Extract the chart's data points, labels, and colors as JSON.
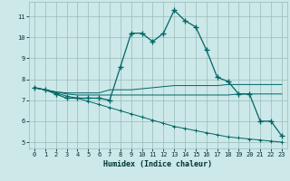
{
  "xlabel": "Humidex (Indice chaleur)",
  "bg_color": "#cce8e8",
  "grid_color": "#99bbbb",
  "line_color": "#006666",
  "x_ticks": [
    0,
    1,
    2,
    3,
    4,
    5,
    6,
    7,
    8,
    9,
    10,
    11,
    12,
    13,
    14,
    15,
    16,
    17,
    18,
    19,
    20,
    21,
    22,
    23
  ],
  "ylim": [
    4.7,
    11.7
  ],
  "xlim": [
    -0.5,
    23.5
  ],
  "yticks": [
    5,
    6,
    7,
    8,
    9,
    10,
    11
  ],
  "series1_x": [
    0,
    1,
    2,
    3,
    4,
    5,
    6,
    7,
    8,
    9,
    10,
    11,
    12,
    13,
    14,
    15,
    16,
    17,
    18,
    19,
    20,
    21,
    22,
    23
  ],
  "series1_y": [
    7.6,
    7.5,
    7.3,
    7.1,
    7.1,
    7.1,
    7.1,
    7.0,
    8.6,
    10.2,
    10.2,
    9.8,
    10.2,
    11.3,
    10.8,
    10.5,
    9.4,
    8.1,
    7.9,
    7.3,
    7.3,
    6.0,
    6.0,
    5.3
  ],
  "series2_x": [
    0,
    1,
    2,
    3,
    4,
    5,
    6,
    7,
    8,
    9,
    10,
    11,
    12,
    13,
    14,
    15,
    16,
    17,
    18,
    19,
    20,
    21,
    22,
    23
  ],
  "series2_y": [
    7.6,
    7.5,
    7.4,
    7.35,
    7.35,
    7.35,
    7.35,
    7.5,
    7.5,
    7.5,
    7.55,
    7.6,
    7.65,
    7.7,
    7.7,
    7.7,
    7.7,
    7.7,
    7.75,
    7.75,
    7.75,
    7.75,
    7.75,
    7.75
  ],
  "series3_x": [
    0,
    1,
    2,
    3,
    4,
    5,
    6,
    7,
    8,
    9,
    10,
    11,
    12,
    13,
    14,
    15,
    16,
    17,
    18,
    19,
    20,
    21,
    22,
    23
  ],
  "series3_y": [
    7.6,
    7.5,
    7.4,
    7.3,
    7.25,
    7.25,
    7.25,
    7.25,
    7.25,
    7.25,
    7.25,
    7.25,
    7.25,
    7.25,
    7.25,
    7.25,
    7.25,
    7.25,
    7.25,
    7.3,
    7.3,
    7.3,
    7.3,
    7.3
  ],
  "series4_x": [
    0,
    1,
    2,
    3,
    4,
    5,
    6,
    7,
    8,
    9,
    10,
    11,
    12,
    13,
    14,
    15,
    16,
    17,
    18,
    19,
    20,
    21,
    22,
    23
  ],
  "series4_y": [
    7.6,
    7.5,
    7.35,
    7.2,
    7.1,
    6.95,
    6.8,
    6.65,
    6.5,
    6.35,
    6.2,
    6.05,
    5.9,
    5.75,
    5.65,
    5.55,
    5.45,
    5.35,
    5.25,
    5.2,
    5.15,
    5.1,
    5.05,
    5.0
  ]
}
